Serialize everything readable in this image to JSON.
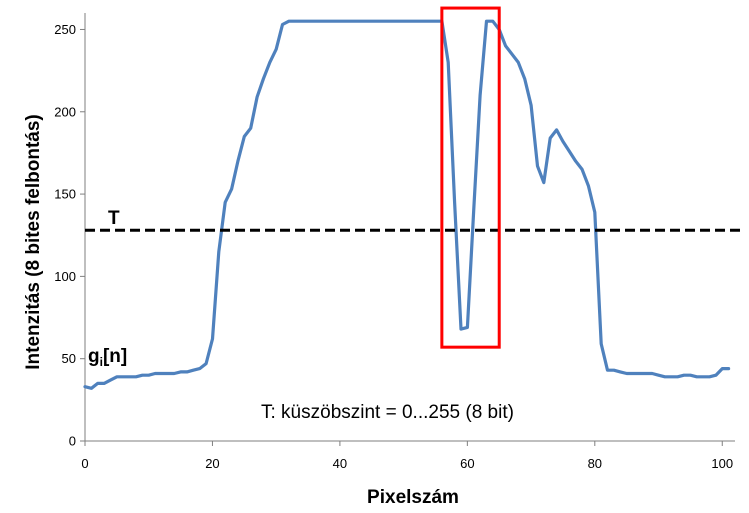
{
  "chart_data": {
    "type": "line",
    "xlabel": "Pixelszám",
    "ylabel": "Intenzitás (8 bites felbontás)",
    "xlim": [
      0,
      102
    ],
    "ylim": [
      0,
      260
    ],
    "x_ticks": [
      "0",
      "20",
      "40",
      "60",
      "80",
      "100"
    ],
    "y_ticks": [
      "0",
      "50",
      "100",
      "150",
      "200",
      "250"
    ],
    "grid": false,
    "series": [
      {
        "name": "gi[n]",
        "color": "#4f81bd",
        "x": [
          0,
          1,
          2,
          3,
          4,
          5,
          6,
          7,
          8,
          9,
          10,
          11,
          12,
          13,
          14,
          15,
          16,
          17,
          18,
          19,
          20,
          21,
          22,
          23,
          24,
          25,
          26,
          27,
          28,
          29,
          30,
          31,
          32,
          33,
          34,
          35,
          36,
          37,
          38,
          39,
          40,
          41,
          42,
          43,
          44,
          45,
          46,
          47,
          48,
          49,
          50,
          51,
          52,
          53,
          54,
          55,
          56,
          57,
          58,
          59,
          60,
          61,
          62,
          63,
          64,
          65,
          66,
          67,
          68,
          69,
          70,
          71,
          72,
          73,
          74,
          75,
          76,
          77,
          78,
          79,
          80,
          81,
          82,
          83,
          84,
          85,
          86,
          87,
          88,
          89,
          90,
          91,
          92,
          93,
          94,
          95,
          96,
          97,
          98,
          99,
          100,
          101
        ],
        "y": [
          33,
          32,
          35,
          35,
          37,
          39,
          39,
          39,
          39,
          40,
          40,
          41,
          41,
          41,
          41,
          42,
          42,
          43,
          44,
          47,
          62,
          115,
          145,
          153,
          170,
          185,
          190,
          209,
          220,
          230,
          238,
          253,
          255,
          255,
          255,
          255,
          255,
          255,
          255,
          255,
          255,
          255,
          255,
          255,
          255,
          255,
          255,
          255,
          255,
          255,
          255,
          255,
          255,
          255,
          255,
          255,
          255,
          230,
          145,
          68,
          69,
          140,
          210,
          255,
          255,
          250,
          240,
          235,
          230,
          220,
          204,
          167,
          157,
          184,
          189,
          182,
          176,
          170,
          165,
          155,
          139,
          59,
          43,
          43,
          42,
          41,
          41,
          41,
          41,
          41,
          40,
          39,
          39,
          39,
          40,
          40,
          39,
          39,
          39,
          40,
          44,
          44
        ]
      }
    ],
    "threshold": {
      "label": "T",
      "value": 128,
      "color": "#000000",
      "style": "dashed"
    },
    "highlight": {
      "x_from": 56,
      "x_to": 65,
      "y_from": 57,
      "y_to": 263,
      "color": "#ff0000"
    },
    "series_label": {
      "main": "g",
      "sub": "i",
      "suffix": "[n]"
    },
    "annotation": "T: küszöbszint = 0...255 (8 bit)"
  }
}
